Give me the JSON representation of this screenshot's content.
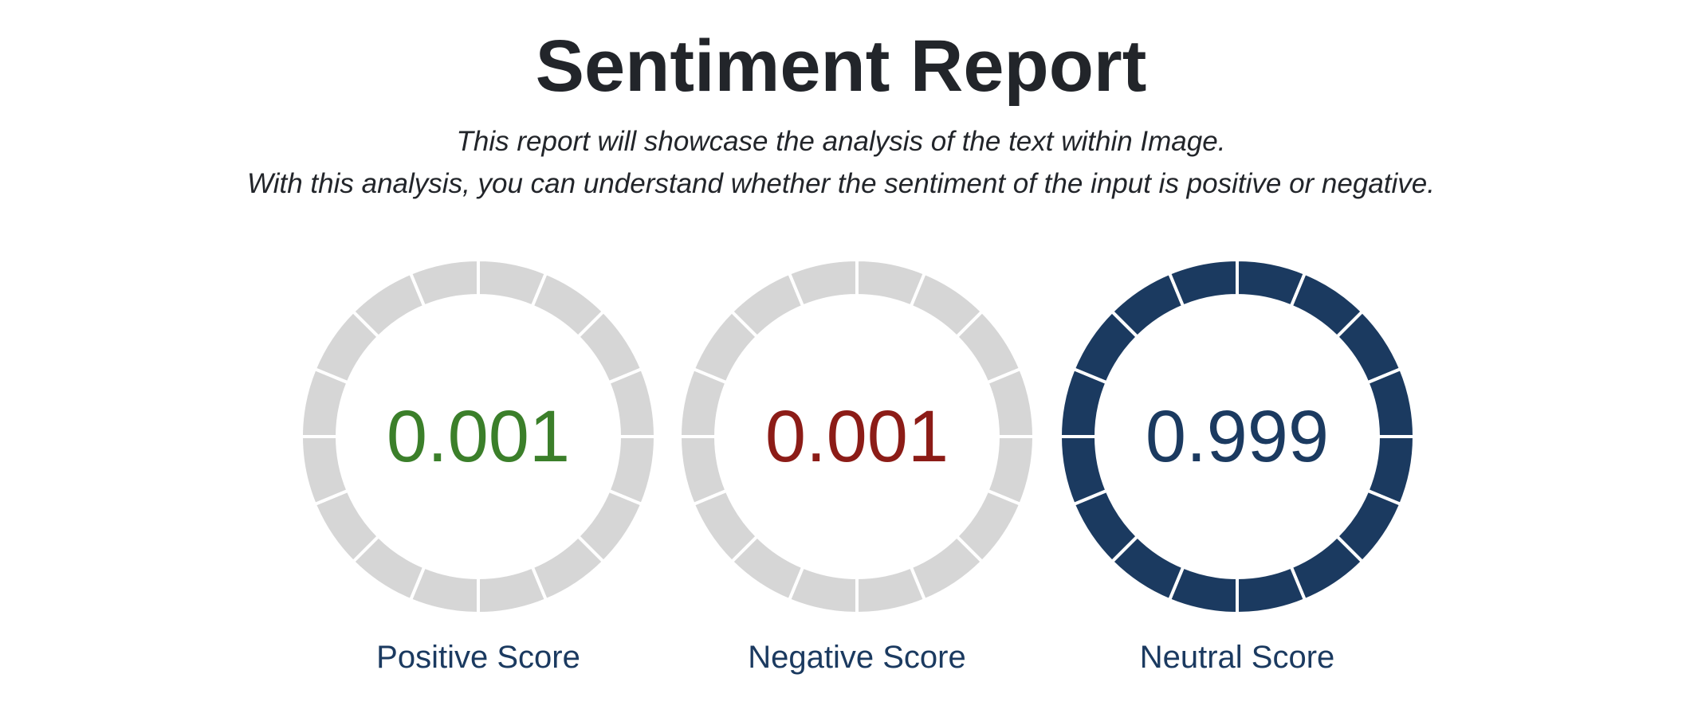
{
  "report": {
    "title": "Sentiment Report",
    "subtitle_line1": "This report will showcase the analysis of the text within Image.",
    "subtitle_line2": "With this analysis, you can understand whether the sentiment of the input is positive or negative."
  },
  "colors": {
    "positive": "#3b7f2a",
    "negative": "#8c1c17",
    "neutral": "#1b3a60",
    "track": "#d6d6d6",
    "title": "#22252a"
  },
  "chart_data": {
    "type": "gauge",
    "segments": 16,
    "max": 1,
    "gauges": [
      {
        "label": "Positive Score",
        "value": 0.001,
        "display": "0.001",
        "color": "#3b7f2a"
      },
      {
        "label": "Negative Score",
        "value": 0.001,
        "display": "0.001",
        "color": "#8c1c17"
      },
      {
        "label": "Neutral Score",
        "value": 0.999,
        "display": "0.999",
        "color": "#1b3a60"
      }
    ]
  }
}
